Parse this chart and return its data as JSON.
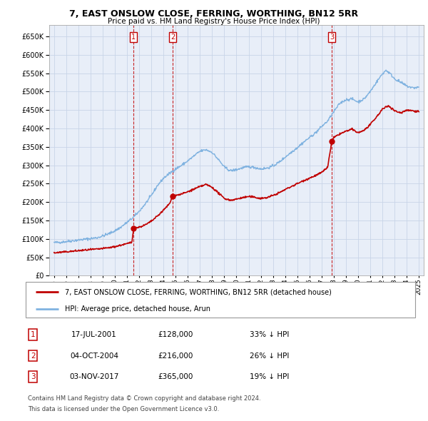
{
  "title": "7, EAST ONSLOW CLOSE, FERRING, WORTHING, BN12 5RR",
  "subtitle": "Price paid vs. HM Land Registry's House Price Index (HPI)",
  "legend_line1": "7, EAST ONSLOW CLOSE, FERRING, WORTHING, BN12 5RR (detached house)",
  "legend_line2": "HPI: Average price, detached house, Arun",
  "footnote1": "Contains HM Land Registry data © Crown copyright and database right 2024.",
  "footnote2": "This data is licensed under the Open Government Licence v3.0.",
  "transactions": [
    {
      "num": 1,
      "date": "17-JUL-2001",
      "price": "£128,000",
      "pct": "33% ↓ HPI",
      "year": 2001.54
    },
    {
      "num": 2,
      "date": "04-OCT-2004",
      "price": "£216,000",
      "pct": "26% ↓ HPI",
      "year": 2004.76
    },
    {
      "num": 3,
      "date": "03-NOV-2017",
      "price": "£365,000",
      "pct": "19% ↓ HPI",
      "year": 2017.84
    }
  ],
  "sale_prices": [
    128000,
    216000,
    365000
  ],
  "sale_years": [
    2001.54,
    2004.76,
    2017.84
  ],
  "hpi_color": "#7fb2e0",
  "price_color": "#c00000",
  "grid_color": "#c8d4e8",
  "background_color": "#e8eef8",
  "ylim": [
    0,
    680000
  ],
  "xlim_start": 1994.6,
  "xlim_end": 2025.4,
  "yticks": [
    0,
    50000,
    100000,
    150000,
    200000,
    250000,
    300000,
    350000,
    400000,
    450000,
    500000,
    550000,
    600000,
    650000
  ],
  "ytick_labels": [
    "£0",
    "£50K",
    "£100K",
    "£150K",
    "£200K",
    "£250K",
    "£300K",
    "£350K",
    "£400K",
    "£450K",
    "£500K",
    "£550K",
    "£600K",
    "£650K"
  ],
  "xticks": [
    1995,
    1996,
    1997,
    1998,
    1999,
    2000,
    2001,
    2002,
    2003,
    2004,
    2005,
    2006,
    2007,
    2008,
    2009,
    2010,
    2011,
    2012,
    2013,
    2014,
    2015,
    2016,
    2017,
    2018,
    2019,
    2020,
    2021,
    2022,
    2023,
    2024,
    2025
  ],
  "hpi_knots": [
    [
      1995.0,
      90000
    ],
    [
      1995.5,
      91000
    ],
    [
      1996.0,
      93000
    ],
    [
      1996.5,
      95000
    ],
    [
      1997.0,
      97000
    ],
    [
      1997.5,
      99000
    ],
    [
      1998.0,
      101000
    ],
    [
      1998.5,
      103000
    ],
    [
      1999.0,
      108000
    ],
    [
      1999.5,
      114000
    ],
    [
      2000.0,
      122000
    ],
    [
      2000.5,
      132000
    ],
    [
      2001.0,
      145000
    ],
    [
      2001.5,
      158000
    ],
    [
      2002.0,
      175000
    ],
    [
      2002.5,
      195000
    ],
    [
      2003.0,
      218000
    ],
    [
      2003.5,
      245000
    ],
    [
      2004.0,
      265000
    ],
    [
      2004.5,
      278000
    ],
    [
      2005.0,
      290000
    ],
    [
      2005.5,
      300000
    ],
    [
      2006.0,
      312000
    ],
    [
      2006.5,
      325000
    ],
    [
      2007.0,
      338000
    ],
    [
      2007.5,
      342000
    ],
    [
      2008.0,
      335000
    ],
    [
      2008.5,
      316000
    ],
    [
      2009.0,
      295000
    ],
    [
      2009.5,
      285000
    ],
    [
      2010.0,
      288000
    ],
    [
      2010.5,
      293000
    ],
    [
      2011.0,
      296000
    ],
    [
      2011.5,
      294000
    ],
    [
      2012.0,
      290000
    ],
    [
      2012.5,
      292000
    ],
    [
      2013.0,
      298000
    ],
    [
      2013.5,
      308000
    ],
    [
      2014.0,
      322000
    ],
    [
      2014.5,
      335000
    ],
    [
      2015.0,
      348000
    ],
    [
      2015.5,
      362000
    ],
    [
      2016.0,
      375000
    ],
    [
      2016.5,
      388000
    ],
    [
      2017.0,
      405000
    ],
    [
      2017.5,
      420000
    ],
    [
      2018.0,
      445000
    ],
    [
      2018.5,
      468000
    ],
    [
      2019.0,
      478000
    ],
    [
      2019.5,
      480000
    ],
    [
      2020.0,
      472000
    ],
    [
      2020.5,
      480000
    ],
    [
      2021.0,
      500000
    ],
    [
      2021.5,
      525000
    ],
    [
      2022.0,
      548000
    ],
    [
      2022.3,
      558000
    ],
    [
      2022.6,
      550000
    ],
    [
      2023.0,
      535000
    ],
    [
      2023.5,
      525000
    ],
    [
      2024.0,
      515000
    ],
    [
      2024.5,
      510000
    ],
    [
      2025.0,
      512000
    ]
  ],
  "price_knots": [
    [
      1995.0,
      62000
    ],
    [
      1995.5,
      63500
    ],
    [
      1996.0,
      65000
    ],
    [
      1996.5,
      66500
    ],
    [
      1997.0,
      68000
    ],
    [
      1997.5,
      69500
    ],
    [
      1998.0,
      71000
    ],
    [
      1998.5,
      72000
    ],
    [
      1999.0,
      74000
    ],
    [
      1999.5,
      76000
    ],
    [
      2000.0,
      79000
    ],
    [
      2000.5,
      83000
    ],
    [
      2001.0,
      87000
    ],
    [
      2001.4,
      91000
    ],
    [
      2001.54,
      128000
    ],
    [
      2001.7,
      130000
    ],
    [
      2002.0,
      132000
    ],
    [
      2002.5,
      138000
    ],
    [
      2003.0,
      148000
    ],
    [
      2003.5,
      162000
    ],
    [
      2004.0,
      178000
    ],
    [
      2004.5,
      196000
    ],
    [
      2004.76,
      216000
    ],
    [
      2005.0,
      218000
    ],
    [
      2005.5,
      222000
    ],
    [
      2006.0,
      228000
    ],
    [
      2006.5,
      235000
    ],
    [
      2007.0,
      242000
    ],
    [
      2007.5,
      248000
    ],
    [
      2008.0,
      240000
    ],
    [
      2008.5,
      225000
    ],
    [
      2009.0,
      210000
    ],
    [
      2009.5,
      205000
    ],
    [
      2010.0,
      208000
    ],
    [
      2010.5,
      212000
    ],
    [
      2011.0,
      215000
    ],
    [
      2011.5,
      213000
    ],
    [
      2012.0,
      210000
    ],
    [
      2012.5,
      212000
    ],
    [
      2013.0,
      218000
    ],
    [
      2013.5,
      225000
    ],
    [
      2014.0,
      234000
    ],
    [
      2014.5,
      242000
    ],
    [
      2015.0,
      250000
    ],
    [
      2015.5,
      258000
    ],
    [
      2016.0,
      265000
    ],
    [
      2016.5,
      272000
    ],
    [
      2017.0,
      280000
    ],
    [
      2017.5,
      295000
    ],
    [
      2017.84,
      365000
    ],
    [
      2018.0,
      375000
    ],
    [
      2018.5,
      385000
    ],
    [
      2019.0,
      392000
    ],
    [
      2019.5,
      398000
    ],
    [
      2020.0,
      388000
    ],
    [
      2020.5,
      395000
    ],
    [
      2021.0,
      410000
    ],
    [
      2021.5,
      430000
    ],
    [
      2022.0,
      452000
    ],
    [
      2022.5,
      462000
    ],
    [
      2023.0,
      448000
    ],
    [
      2023.5,
      442000
    ],
    [
      2024.0,
      450000
    ],
    [
      2024.5,
      448000
    ],
    [
      2025.0,
      446000
    ]
  ]
}
